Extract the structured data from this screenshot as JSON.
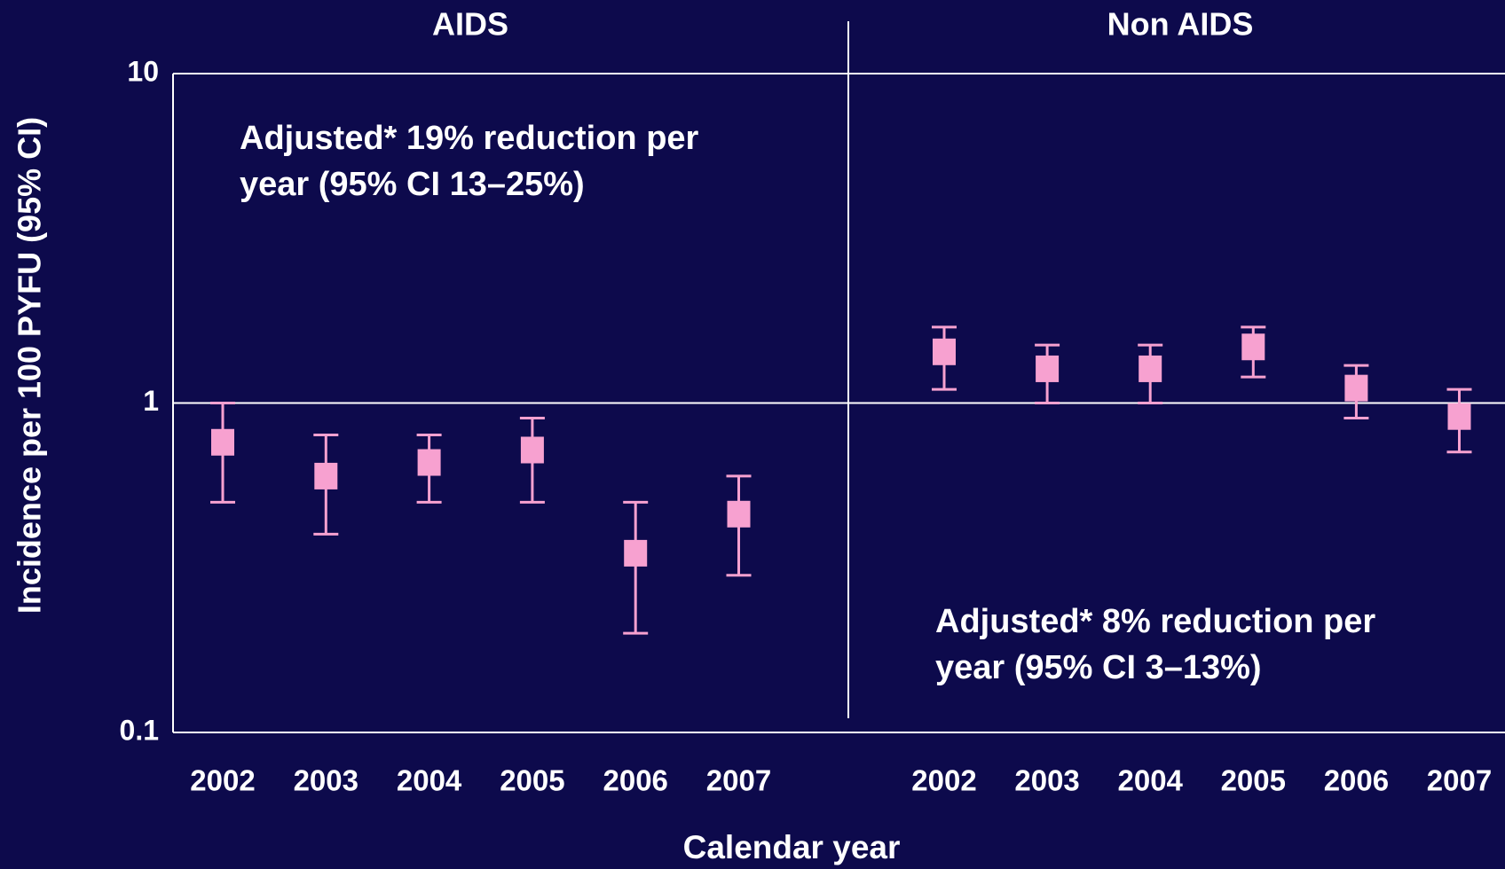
{
  "chart_data": {
    "type": "errorbar",
    "ylabel": "Incidence per 100 PYFU (95% CI)",
    "xlabel": "Calendar year",
    "log_scale": true,
    "ylim": [
      0.1,
      10
    ],
    "yticks": [
      0.1,
      1,
      10
    ],
    "grid": true,
    "color": "#f7a1d0",
    "panels": [
      {
        "title": "AIDS",
        "annotation": [
          "Adjusted* 19% reduction per",
          "year (95% CI  13–25%)"
        ],
        "categories": [
          "2002",
          "2003",
          "2004",
          "2005",
          "2006",
          "2007"
        ],
        "values": [
          0.76,
          0.6,
          0.66,
          0.72,
          0.35,
          0.46
        ],
        "lower": [
          0.5,
          0.4,
          0.5,
          0.5,
          0.2,
          0.3
        ],
        "upper": [
          1.0,
          0.8,
          0.8,
          0.9,
          0.5,
          0.6
        ]
      },
      {
        "title": "Non AIDS",
        "annotation": [
          "Adjusted* 8% reduction per",
          "year (95% CI  3–13%)"
        ],
        "categories": [
          "2002",
          "2003",
          "2004",
          "2005",
          "2006",
          "2007"
        ],
        "values": [
          1.43,
          1.27,
          1.27,
          1.48,
          1.11,
          0.91
        ],
        "lower": [
          1.1,
          1.0,
          1.0,
          1.2,
          0.9,
          0.71
        ],
        "upper": [
          1.7,
          1.5,
          1.5,
          1.7,
          1.3,
          1.1
        ]
      }
    ]
  }
}
